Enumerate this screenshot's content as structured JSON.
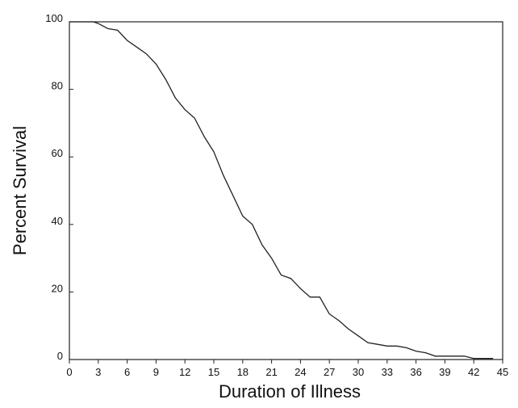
{
  "chart_data": {
    "type": "line",
    "title": "",
    "xlabel": "Duration of Illness",
    "ylabel": "Percent Survival",
    "xlim": [
      0,
      45
    ],
    "ylim": [
      0,
      100
    ],
    "xticks": [
      0,
      3,
      6,
      9,
      12,
      15,
      18,
      21,
      24,
      27,
      30,
      33,
      36,
      39,
      42,
      45
    ],
    "yticks": [
      0,
      20,
      40,
      60,
      80,
      100
    ],
    "grid": false,
    "line_color": "#222222",
    "series": [
      {
        "x": [
          0,
          2.5,
          3,
          4,
          5,
          6,
          7,
          8,
          9,
          10,
          11,
          12,
          13,
          14,
          15,
          16,
          17,
          18,
          19,
          20,
          21,
          22,
          23,
          24,
          25,
          26,
          27,
          28,
          29,
          30,
          31,
          32,
          33,
          34,
          35,
          36,
          37,
          38,
          39,
          40,
          41,
          42,
          43,
          44
        ],
        "y": [
          100,
          100,
          99.5,
          98,
          97.5,
          94.5,
          92.5,
          90.5,
          87.5,
          83,
          77.5,
          74,
          71.5,
          66,
          61.5,
          54.5,
          48.5,
          42.5,
          40,
          34,
          30,
          25,
          24,
          21,
          18.5,
          18.5,
          13.5,
          11.5,
          9,
          7,
          5,
          4.5,
          4,
          4,
          3.5,
          2.5,
          2,
          1,
          1,
          1,
          1,
          0.3,
          0.3,
          0.3
        ]
      }
    ]
  }
}
